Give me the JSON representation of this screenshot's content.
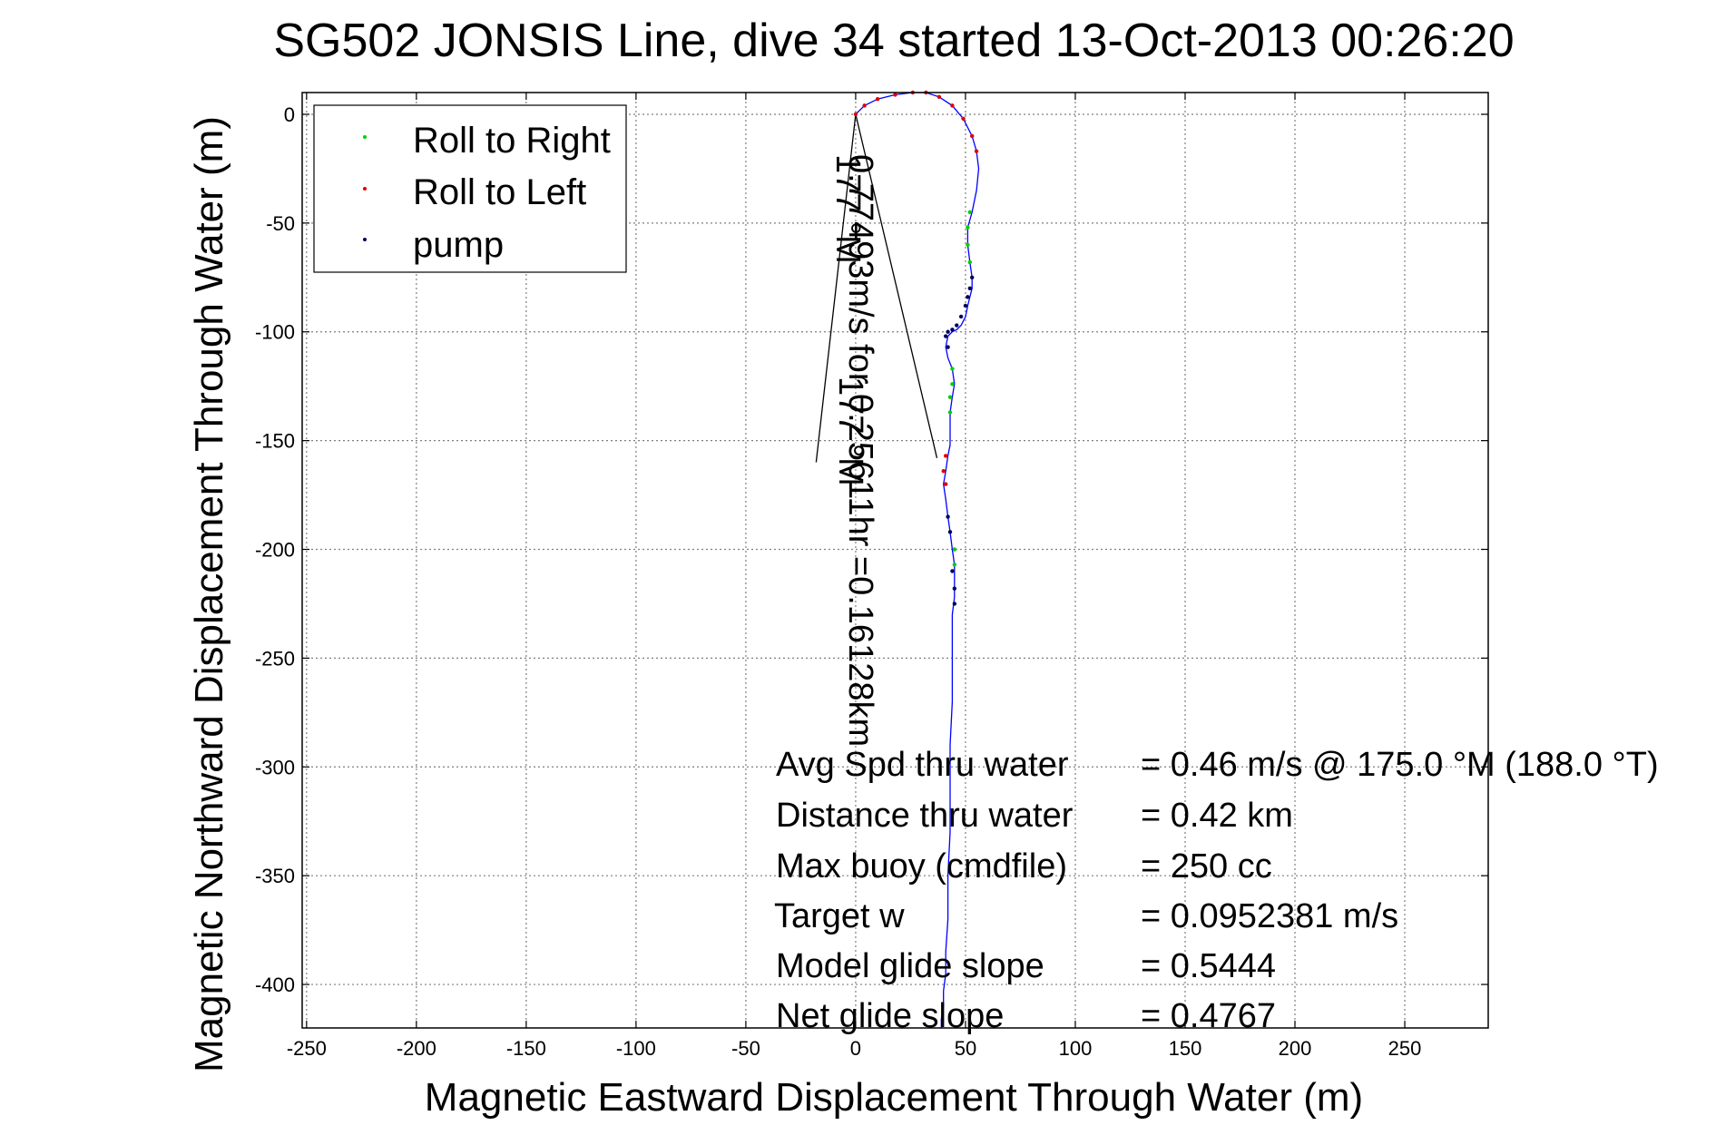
{
  "chart_data": {
    "type": "line",
    "title": "SG502 JONSIS Line, dive 34 started 13-Oct-2013 00:26:20",
    "xlabel": "Magnetic Eastward Displacement Through Water (m)",
    "ylabel": "Magnetic Northward Displacement Through Water (m)",
    "xlim": [
      -252,
      288
    ],
    "ylim": [
      -420,
      10
    ],
    "xticks": [
      -250,
      -200,
      -150,
      -100,
      -50,
      0,
      50,
      100,
      150,
      200,
      250
    ],
    "yticks": [
      0,
      -50,
      -100,
      -150,
      -200,
      -250,
      -300,
      -350,
      -400
    ],
    "grid": true,
    "legend_position": "top-left",
    "legend": [
      {
        "label": "Roll to Right",
        "color": "#00d000"
      },
      {
        "label": "Roll to Left",
        "color": "#e00000"
      },
      {
        "label": "pump",
        "color": "#000060"
      }
    ],
    "series": [
      {
        "name": "track",
        "color": "#0000ff",
        "x": [
          0,
          4,
          10,
          18,
          26,
          32,
          38,
          44,
          49,
          53,
          55,
          56,
          55,
          53,
          51,
          51,
          52,
          53,
          53,
          52,
          51,
          50,
          48,
          46,
          44,
          42,
          41,
          42,
          44,
          45,
          44,
          43,
          43,
          43,
          43,
          42,
          41,
          40,
          41,
          42,
          43,
          44,
          45,
          45,
          45,
          44,
          44,
          44,
          43,
          43,
          43,
          42,
          42,
          41,
          41,
          40,
          40,
          39,
          39
        ],
        "y": [
          0,
          4,
          7,
          9,
          10,
          10,
          8,
          4,
          -2,
          -10,
          -17,
          -25,
          -35,
          -45,
          -52,
          -60,
          -68,
          -75,
          -80,
          -84,
          -88,
          -93,
          -97,
          -99,
          -100,
          -102,
          -107,
          -112,
          -117,
          -124,
          -130,
          -137,
          -143,
          -148,
          -152,
          -157,
          -164,
          -170,
          -177,
          -185,
          -192,
          -200,
          -207,
          -215,
          -222,
          -230,
          -250,
          -270,
          -290,
          -310,
          -330,
          -350,
          -370,
          -385,
          -395,
          -403,
          -410,
          -416,
          -420
        ]
      }
    ],
    "roll_right": {
      "x": [
        52,
        51,
        51,
        52,
        44,
        44,
        43,
        43,
        45,
        45
      ],
      "y": [
        -45,
        -52,
        -60,
        -68,
        -117,
        -124,
        -130,
        -137,
        -200,
        -207
      ]
    },
    "roll_left": {
      "x": [
        0,
        4,
        10,
        18,
        26,
        32,
        38,
        44,
        49,
        53,
        55,
        41,
        40,
        41
      ],
      "y": [
        0,
        4,
        7,
        9,
        10,
        10,
        8,
        4,
        -2,
        -10,
        -17,
        -157,
        -164,
        -170
      ]
    },
    "pump": {
      "x": [
        53,
        52,
        51,
        50,
        48,
        46,
        44,
        42,
        41,
        42,
        42,
        43,
        44,
        45,
        45
      ],
      "y": [
        -75,
        -80,
        -84,
        -88,
        -93,
        -97,
        -99,
        -100,
        -102,
        -107,
        -185,
        -192,
        -210,
        -218,
        -225
      ]
    },
    "current_arrow": {
      "shaft": [
        [
          0,
          0
        ],
        [
          -18,
          -160
        ]
      ],
      "head": [
        [
          0,
          0
        ],
        [
          37,
          -158
        ]
      ]
    },
    "annotations": {
      "current_line1": "0.77493m/s for 0.25611hr =0.16128km",
      "current_line2": "177 °M",
      "current_line3": "177 °M"
    },
    "stats": [
      {
        "label": "Avg Spd thru water",
        "value": "=  0.46 m/s @ 175.0 °M (188.0 °T)"
      },
      {
        "label": "Distance thru water",
        "value": "=  0.42 km"
      },
      {
        "label": "Max buoy (cmdfile)",
        "value": "= 250 cc"
      },
      {
        "label": "Target w",
        "value": "= 0.0952381 m/s"
      },
      {
        "label": "Model glide slope",
        "value": "= 0.5444"
      },
      {
        "label": "Net glide slope",
        "value": "= 0.4767"
      }
    ]
  }
}
